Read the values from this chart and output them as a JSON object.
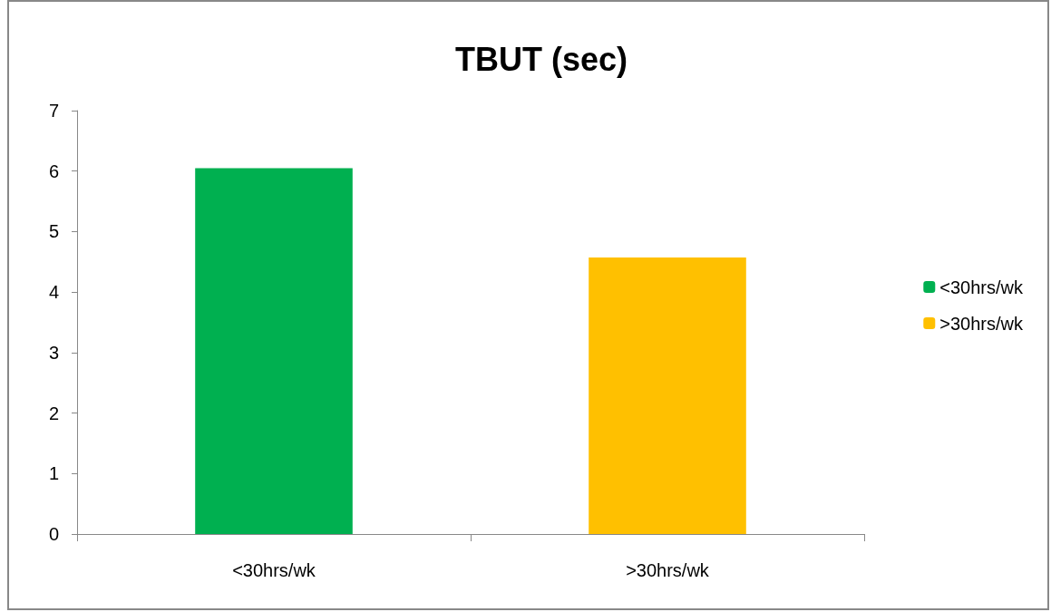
{
  "chart_data": {
    "type": "bar",
    "title": "TBUT (sec)",
    "categories": [
      "<30hrs/wk",
      ">30hrs/wk"
    ],
    "series": [
      {
        "name": "<30hrs/wk",
        "color": "#00b050",
        "values": [
          6.05,
          null
        ]
      },
      {
        "name": ">30hrs/wk",
        "color": "#ffc000",
        "values": [
          null,
          4.57
        ]
      }
    ],
    "ylim": [
      0,
      7
    ],
    "yticks": [
      0,
      1,
      2,
      3,
      4,
      5,
      6,
      7
    ],
    "grid": false,
    "legend": "right"
  }
}
